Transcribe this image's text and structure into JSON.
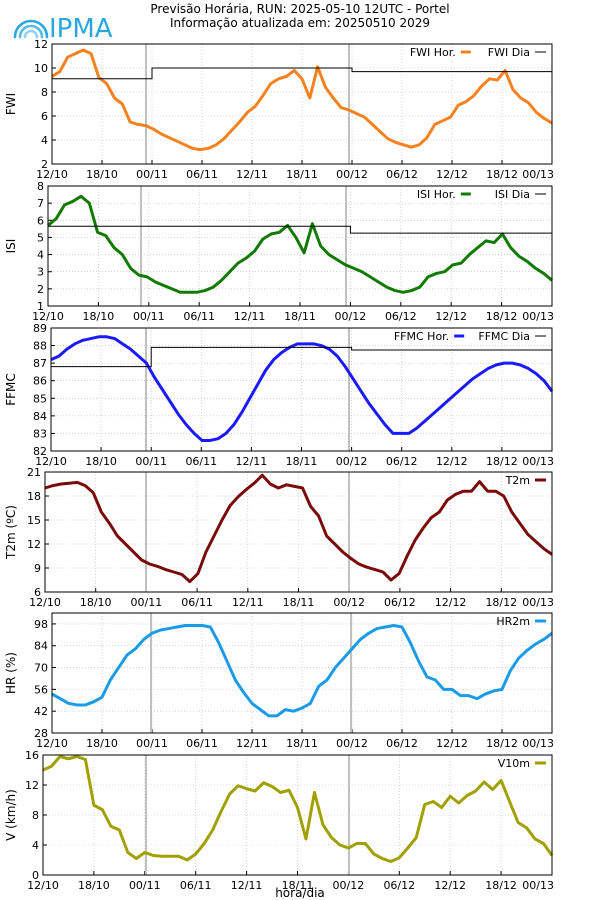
{
  "header": {
    "title": "Previsão Horária, RUN: 2025-05-10 12UTC - Portel",
    "subtitle": "Informação atualizada em: 20250510 2029"
  },
  "logo": {
    "text": "IPMA",
    "color": "#2aa7df"
  },
  "footer": {
    "xlabel": "hora/dia"
  },
  "colors": {
    "fwi": "#f5821f",
    "isi": "#117a00",
    "ffmc": "#1a1aff",
    "t2m": "#7a0a0a",
    "hr": "#1a9be8",
    "v10m": "#a0a000",
    "grid": "#bbbbbb",
    "day_line": "#c0c0c0"
  },
  "chart_data": [
    {
      "type": "line",
      "ylabel": "FWI",
      "ylim": [
        2,
        12
      ],
      "yticks": [
        2,
        4,
        6,
        8,
        10,
        12
      ],
      "xticks": [
        "12/10",
        "18/10",
        "00/11",
        "06/11",
        "12/11",
        "18/11",
        "00/12",
        "06/12",
        "12/12",
        "18/12",
        "00/13"
      ],
      "legend_position": "top-right",
      "series": [
        {
          "name": "FWI Hor.",
          "style": "line",
          "values": [
            9.3,
            9.7,
            10.9,
            11.2,
            11.5,
            11.2,
            9.2,
            8.7,
            7.5,
            7,
            5.5,
            5.3,
            5.2,
            4.9,
            4.5,
            4.2,
            3.9,
            3.6,
            3.3,
            3.2,
            3.3,
            3.6,
            4.1,
            4.8,
            5.5,
            6.3,
            6.8,
            7.7,
            8.7,
            9.1,
            9.3,
            9.8,
            9.1,
            7.5,
            10.1,
            8.4,
            7.5,
            6.7,
            6.5,
            6.2,
            5.9,
            5.3,
            4.7,
            4.1,
            3.8,
            3.6,
            3.4,
            3.6,
            4.2,
            5.3,
            5.6,
            5.9,
            6.9,
            7.2,
            7.7,
            8.5,
            9.1,
            9,
            9.8,
            8.2,
            7.5,
            7.1,
            6.3,
            5.8,
            5.4
          ]
        },
        {
          "name": "FWI Dia",
          "style": "step",
          "x": [
            0,
            16,
            16,
            48,
            48,
            80
          ],
          "values": [
            9.1,
            9.1,
            10,
            10,
            9.7,
            9.7
          ]
        }
      ]
    },
    {
      "type": "line",
      "ylabel": "ISI",
      "ylim": [
        1,
        8
      ],
      "yticks": [
        1,
        2,
        3,
        4,
        5,
        6,
        7,
        8
      ],
      "xticks": [
        "12/10",
        "18/10",
        "00/11",
        "06/11",
        "12/11",
        "18/11",
        "00/12",
        "06/12",
        "12/12",
        "18/12",
        "00/13"
      ],
      "legend_position": "top-right",
      "series": [
        {
          "name": "ISI Hor.",
          "style": "line",
          "values": [
            5.7,
            6.1,
            6.9,
            7.1,
            7.4,
            7,
            5.3,
            5.1,
            4.4,
            4,
            3.2,
            2.8,
            2.7,
            2.4,
            2.2,
            2,
            1.8,
            1.8,
            1.8,
            1.9,
            2.1,
            2.5,
            3,
            3.5,
            3.8,
            4.2,
            4.9,
            5.2,
            5.3,
            5.7,
            5,
            4.1,
            5.8,
            4.5,
            4,
            3.7,
            3.4,
            3.2,
            3,
            2.7,
            2.4,
            2.1,
            1.9,
            1.8,
            1.9,
            2.1,
            2.7,
            2.9,
            3,
            3.4,
            3.5,
            4,
            4.4,
            4.8,
            4.7,
            5.2,
            4.4,
            3.9,
            3.6,
            3.2,
            2.9,
            2.5
          ]
        },
        {
          "name": "ISI Dia",
          "style": "step",
          "x": [
            0,
            16,
            16,
            48,
            48,
            80
          ],
          "values": [
            5.65,
            5.65,
            5.65,
            5.65,
            5.25,
            5.25
          ]
        }
      ]
    },
    {
      "type": "line",
      "ylabel": "FFMC",
      "ylim": [
        82,
        89
      ],
      "yticks": [
        82,
        83,
        84,
        85,
        86,
        87,
        88,
        89
      ],
      "xticks": [
        "12/10",
        "18/10",
        "00/11",
        "06/11",
        "12/11",
        "18/11",
        "00/12",
        "06/12",
        "12/12",
        "18/12",
        "00/13"
      ],
      "legend_position": "top-right",
      "series": [
        {
          "name": "FFMC Hor.",
          "style": "line",
          "values": [
            87.2,
            87.4,
            87.8,
            88.1,
            88.3,
            88.4,
            88.5,
            88.5,
            88.4,
            88.1,
            87.8,
            87.4,
            87,
            86.2,
            85.5,
            84.8,
            84.1,
            83.5,
            83,
            82.6,
            82.6,
            82.7,
            83,
            83.5,
            84.2,
            85,
            85.8,
            86.6,
            87.2,
            87.6,
            87.9,
            88.1,
            88.1,
            88.1,
            88,
            87.8,
            87.4,
            86.8,
            86.1,
            85.4,
            84.7,
            84.1,
            83.5,
            83,
            83,
            83,
            83.3,
            83.7,
            84.1,
            84.5,
            84.9,
            85.3,
            85.7,
            86.1,
            86.4,
            86.7,
            86.9,
            87,
            87,
            86.9,
            86.7,
            86.4,
            86,
            85.4
          ]
        },
        {
          "name": "FFMC Dia",
          "style": "step",
          "x": [
            0,
            16,
            16,
            48,
            48,
            80
          ],
          "values": [
            86.8,
            86.8,
            87.9,
            87.9,
            87.75,
            87.75
          ]
        }
      ]
    },
    {
      "type": "line",
      "ylabel": "T2m (ºC)",
      "ylim": [
        6,
        21
      ],
      "yticks": [
        6,
        9,
        12,
        15,
        18,
        21
      ],
      "xticks": [
        "12/10",
        "18/10",
        "00/11",
        "06/11",
        "12/11",
        "18/11",
        "00/12",
        "06/12",
        "12/12",
        "18/12",
        "00/13"
      ],
      "legend_position": "top-right",
      "series": [
        {
          "name": "T2m",
          "style": "line",
          "values": [
            19,
            19.3,
            19.5,
            19.6,
            19.7,
            19.3,
            18.4,
            16,
            14.6,
            13,
            12,
            11,
            10,
            9.5,
            9.2,
            8.8,
            8.5,
            8.2,
            7.3,
            8.3,
            11,
            13,
            15,
            16.8,
            17.9,
            18.8,
            19.6,
            20.6,
            19.5,
            19,
            19.4,
            19.2,
            19,
            16.7,
            15.5,
            13,
            12,
            11,
            10.2,
            9.5,
            9.1,
            8.8,
            8.5,
            7.5,
            8.3,
            10.5,
            12.5,
            14,
            15.3,
            16,
            17.5,
            18.2,
            18.6,
            18.6,
            19.8,
            18.6,
            18.6,
            18,
            16,
            14.6,
            13.2,
            12.3,
            11.4,
            10.7
          ]
        }
      ]
    },
    {
      "type": "line",
      "ylabel": "HR (%)",
      "ylim": [
        28,
        105
      ],
      "yticks": [
        28,
        42,
        56,
        70,
        84,
        98
      ],
      "xticks": [
        "12/10",
        "18/10",
        "00/11",
        "06/11",
        "12/11",
        "18/11",
        "00/12",
        "06/12",
        "12/12",
        "18/12",
        "00/13"
      ],
      "legend_position": "top-right",
      "series": [
        {
          "name": "HR2m",
          "style": "line",
          "values": [
            53,
            50,
            47,
            46,
            46,
            48,
            51,
            62,
            70,
            78,
            82,
            88,
            92,
            94,
            95,
            96,
            97,
            97,
            97,
            96,
            86,
            74,
            62,
            54,
            47,
            43,
            39,
            39,
            43,
            42,
            44,
            47,
            58,
            62,
            70,
            76,
            82,
            88,
            92,
            95,
            96,
            97,
            96,
            86,
            74,
            64,
            62,
            56,
            56,
            52,
            52,
            50,
            53,
            55,
            56,
            68,
            76,
            81,
            85,
            88,
            92
          ]
        }
      ]
    },
    {
      "type": "line",
      "ylabel": "V (km/h)",
      "ylim": [
        0,
        16
      ],
      "yticks": [
        0,
        4,
        8,
        12,
        16
      ],
      "xticks": [
        "12/10",
        "18/10",
        "00/11",
        "06/11",
        "12/11",
        "18/11",
        "00/12",
        "06/12",
        "12/12",
        "18/12",
        "00/13"
      ],
      "legend_position": "top-right",
      "series": [
        {
          "name": "V10m",
          "style": "line",
          "values": [
            14,
            14.5,
            15.8,
            15.5,
            15.8,
            15.4,
            9.3,
            8.7,
            6.5,
            6,
            3,
            2.2,
            3,
            2.6,
            2.5,
            2.5,
            2.5,
            2,
            2.8,
            4.2,
            6,
            8.5,
            10.8,
            11.9,
            11.5,
            11.2,
            12.3,
            11.8,
            11,
            11.3,
            9,
            4.8,
            11,
            6.7,
            5,
            4,
            3.6,
            4.2,
            4.2,
            2.8,
            2.2,
            1.8,
            2.3,
            3.6,
            5,
            9.4,
            9.8,
            9,
            10.5,
            9.6,
            10.6,
            11.2,
            12.4,
            11.4,
            12.6,
            9.8,
            7,
            6.3,
            4.8,
            4.2,
            2.6
          ]
        }
      ]
    }
  ]
}
